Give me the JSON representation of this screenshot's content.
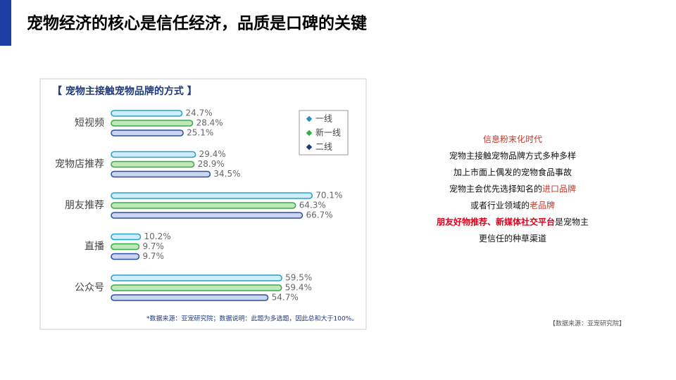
{
  "title": "宠物经济的核心是信任经济，品质是口碑的关键",
  "chart_data": {
    "type": "bar",
    "orientation": "horizontal",
    "title": "【 宠物主接触宠物品牌的方式 】",
    "categories": [
      "短视频",
      "宠物店推荐",
      "朋友推荐",
      "直播",
      "公众号"
    ],
    "series": [
      {
        "name": "一线",
        "color": "#cdeefa",
        "stroke": "#2aa0c8",
        "marker": "#2a8fc0",
        "values": [
          24.7,
          29.4,
          70.1,
          10.2,
          59.5
        ],
        "value_labels": [
          "24.7%",
          "29.4%",
          "70.1%",
          "10.2%",
          "59.5%"
        ]
      },
      {
        "name": "新一线",
        "color": "#bfe8b8",
        "stroke": "#3aa84a",
        "marker": "#2db04a",
        "values": [
          28.4,
          28.9,
          64.3,
          9.7,
          59.4
        ],
        "value_labels": [
          "28.4%",
          "28.9%",
          "64.3%",
          "9.7%",
          "59.4%"
        ]
      },
      {
        "name": "二线",
        "color": "#cad6f0",
        "stroke": "#2f4f9a",
        "marker": "#1f3a7a",
        "values": [
          25.1,
          34.5,
          66.7,
          9.7,
          54.7
        ],
        "value_labels": [
          "25.1%",
          "34.5%",
          "66.7%",
          "9.7%",
          "54.7%"
        ]
      }
    ],
    "legend": "top-right",
    "note": "*数据来源：亚宠研究院；数据说明：此题为多选题，因此总和大于100%。"
  },
  "commentary": [
    [
      {
        "text": "信息粉末化时代",
        "color": "#c0392b"
      }
    ],
    [
      {
        "text": "宠物主接触宠物品牌方式多种多样"
      }
    ],
    [
      {
        "text": "加上市面上偶发的宠物食品事故"
      }
    ],
    [
      {
        "text": "宠物主会优先选择知名的"
      },
      {
        "text": "进口品牌",
        "color": "#c0392b"
      }
    ],
    [
      {
        "text": "或者行业领域的"
      },
      {
        "text": "老品牌",
        "color": "#c0392b"
      }
    ],
    [
      {
        "text": "朋友好物推荐、新媒体社交平台",
        "color": "#e0001b",
        "bold": true
      },
      {
        "text": "是宠物主"
      }
    ],
    [
      {
        "text": "更信任的种草渠道"
      }
    ]
  ],
  "source": "【数据来源：亚宠研究院】"
}
